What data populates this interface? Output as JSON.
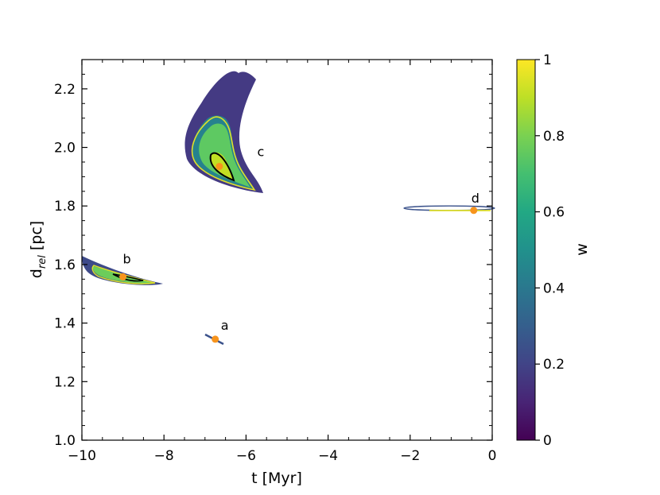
{
  "chart_data": {
    "type": "scatter",
    "title": "",
    "xlabel": "t [Myr]",
    "ylabel_main": "d",
    "ylabel_sub": "rel",
    "ylabel_unit": " [pc]",
    "xlim": [
      -10,
      0
    ],
    "ylim": [
      1.0,
      2.3
    ],
    "x_ticks": [
      -10,
      -8,
      -6,
      -4,
      -2,
      0
    ],
    "x_tick_labels": [
      "−10",
      "−8",
      "−6",
      "−4",
      "−2",
      "0"
    ],
    "y_ticks": [
      1.0,
      1.2,
      1.4,
      1.6,
      1.8,
      2.0,
      2.2
    ],
    "y_tick_labels": [
      "1.0",
      "1.2",
      "1.4",
      "1.6",
      "1.8",
      "2.0",
      "2.2"
    ],
    "colorbar": {
      "label": "w",
      "range": [
        0,
        1
      ],
      "colormap": "viridis",
      "ticks": [
        0,
        0.2,
        0.4,
        0.6,
        0.8,
        1
      ],
      "tick_labels": [
        "0",
        "0.2",
        "0.4",
        "0.6",
        "0.8",
        "1"
      ]
    },
    "clusters": [
      {
        "label": "a",
        "t": -6.75,
        "d": 1.345
      },
      {
        "label": "b",
        "t": -9.0,
        "d": 1.558
      },
      {
        "label": "c",
        "t": -6.65,
        "d": 1.935
      },
      {
        "label": "d",
        "t": -0.45,
        "d": 1.785
      }
    ],
    "marker_color": "#f7941d",
    "grid": false
  }
}
